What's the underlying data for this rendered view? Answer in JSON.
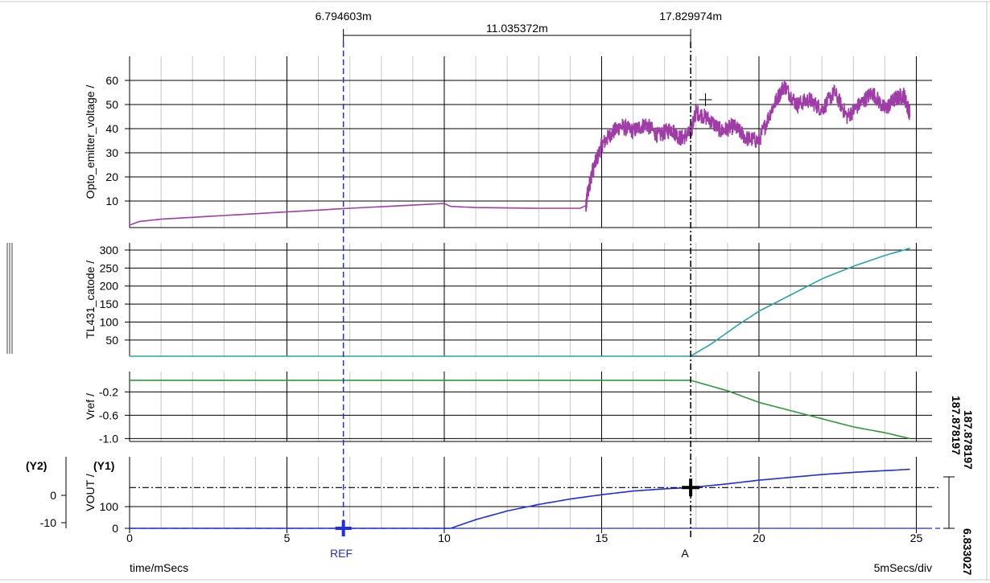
{
  "cursors": {
    "ref_time_label": "6.794603m",
    "a_time_label": "17.829974m",
    "delta_label": "11.035372m",
    "ref_name": "REF",
    "a_name": "A",
    "ref_ms": 6.794603,
    "a_ms": 17.829974,
    "vout_cursor_value_1": "187.878197",
    "vout_cursor_value_2": "187.878197",
    "vout_ref_value": "6.833027",
    "ref_color": "#1f2de6",
    "a_color": "#000000"
  },
  "footer": {
    "x_axis_label": "time/mSecs",
    "scale_label": "5mSecs/div"
  },
  "chart_data": [
    {
      "type": "line",
      "ylabel": "Opto_emitter_voltage /",
      "xlim": [
        0,
        25.5
      ],
      "ylim": [
        -1,
        70
      ],
      "yticks": [
        "10",
        "20",
        "30",
        "40",
        "50",
        "60"
      ],
      "yticks_values": [
        10,
        20,
        30,
        40,
        50,
        60
      ],
      "color": "#a03ca8",
      "grid": true,
      "series": [
        {
          "x": [
            0,
            0.3,
            1,
            3,
            5,
            7,
            9,
            10,
            10.2,
            11,
            13,
            14.5,
            14.55,
            14.7,
            15,
            15.3,
            15.6,
            16,
            16.4,
            16.8,
            17.2,
            17.5,
            17.82,
            18,
            18.4,
            18.8,
            19.2,
            19.6,
            20,
            20.4,
            20.8,
            21.2,
            21.6,
            22,
            22.4,
            22.8,
            23.2,
            23.6,
            24,
            24.3,
            24.6,
            24.8
          ],
          "y": [
            0,
            1.5,
            2.5,
            4,
            5.5,
            7,
            8.3,
            9,
            7.8,
            7.3,
            7,
            7,
            13,
            22,
            33,
            38,
            41,
            39,
            42,
            37,
            40,
            36,
            38,
            47,
            44,
            39,
            41,
            36,
            35,
            48,
            58,
            50,
            52,
            48,
            55,
            45,
            50,
            55,
            48,
            52,
            54,
            46
          ]
        }
      ]
    },
    {
      "type": "line",
      "ylabel": "TL431_catode /",
      "xlim": [
        0,
        25.5
      ],
      "ylim": [
        5,
        320
      ],
      "yticks": [
        "50",
        "100",
        "150",
        "200",
        "250",
        "300"
      ],
      "yticks_values": [
        50,
        100,
        150,
        200,
        250,
        300
      ],
      "color": "#2aa3a6",
      "grid": true,
      "series": [
        {
          "x": [
            0,
            17.82,
            18.5,
            19.3,
            20,
            21,
            22,
            23,
            24,
            24.8
          ],
          "y": [
            5,
            5,
            40,
            90,
            130,
            175,
            220,
            255,
            285,
            305
          ]
        }
      ]
    },
    {
      "type": "line",
      "ylabel": "Vref /",
      "xlim": [
        0,
        25.5
      ],
      "ylim": [
        -1.05,
        0.15
      ],
      "yticks": [
        "-0.2",
        "-0.6",
        "-1.0"
      ],
      "yticks_values": [
        -0.2,
        -0.6,
        -1.0
      ],
      "color": "#2f9a3a",
      "grid": true,
      "series": [
        {
          "x": [
            0,
            17.82,
            19,
            20,
            21,
            22,
            23,
            24,
            24.8
          ],
          "y": [
            0,
            0,
            -0.18,
            -0.38,
            -0.52,
            -0.66,
            -0.8,
            -0.9,
            -1.0
          ]
        }
      ]
    },
    {
      "type": "line",
      "ylabel": "VOUT /",
      "y1_label": "(Y1)",
      "y2_label": "(Y2)",
      "xlim": [
        0,
        25.5
      ],
      "ylim": [
        0,
        330
      ],
      "yticks": [
        "100",
        "0"
      ],
      "yticks_values": [
        100,
        0
      ],
      "y2_ticks": [
        "0",
        "-10"
      ],
      "xticks": [
        "0",
        "5",
        "10",
        "15",
        "20",
        "25"
      ],
      "xticks_values": [
        0,
        5,
        10,
        15,
        20,
        25
      ],
      "color": "#1f2de6",
      "grid": true,
      "series": [
        {
          "x": [
            0,
            10.2,
            11,
            12,
            13,
            14,
            15,
            16,
            17,
            17.82,
            19,
            20,
            21,
            22,
            23,
            24,
            24.8
          ],
          "y": [
            0,
            0,
            40,
            80,
            110,
            135,
            155,
            172,
            182,
            188,
            205,
            222,
            235,
            248,
            258,
            266,
            272
          ]
        }
      ]
    }
  ]
}
